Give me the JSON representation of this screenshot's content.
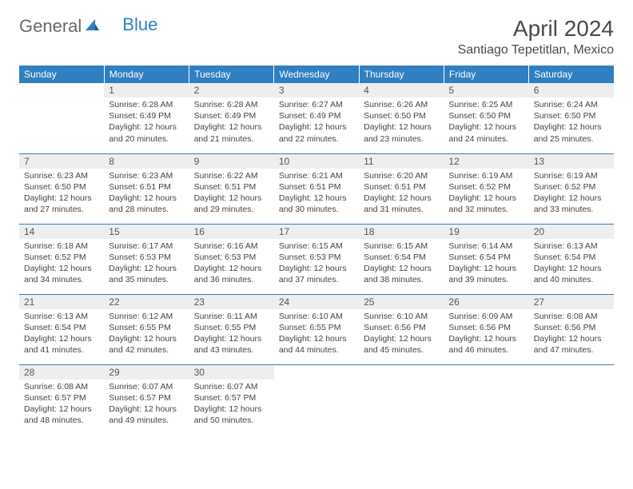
{
  "brand": {
    "part1": "General",
    "part2": "Blue"
  },
  "title": "April 2024",
  "location": "Santiago Tepetitlan, Mexico",
  "colors": {
    "header_bg": "#2f7fc1",
    "header_text": "#ffffff",
    "daynum_bg": "#eeeeee",
    "border": "#2f7fc1",
    "text": "#444444",
    "logo_gray": "#6a6a6a",
    "logo_blue": "#2f7fc1"
  },
  "weekdays": [
    "Sunday",
    "Monday",
    "Tuesday",
    "Wednesday",
    "Thursday",
    "Friday",
    "Saturday"
  ],
  "layout": {
    "columns": 7,
    "rows": 5,
    "first_weekday_index": 1,
    "days_in_month": 30
  },
  "days": {
    "1": {
      "sunrise": "6:28 AM",
      "sunset": "6:49 PM",
      "daylight": "12 hours and 20 minutes."
    },
    "2": {
      "sunrise": "6:28 AM",
      "sunset": "6:49 PM",
      "daylight": "12 hours and 21 minutes."
    },
    "3": {
      "sunrise": "6:27 AM",
      "sunset": "6:49 PM",
      "daylight": "12 hours and 22 minutes."
    },
    "4": {
      "sunrise": "6:26 AM",
      "sunset": "6:50 PM",
      "daylight": "12 hours and 23 minutes."
    },
    "5": {
      "sunrise": "6:25 AM",
      "sunset": "6:50 PM",
      "daylight": "12 hours and 24 minutes."
    },
    "6": {
      "sunrise": "6:24 AM",
      "sunset": "6:50 PM",
      "daylight": "12 hours and 25 minutes."
    },
    "7": {
      "sunrise": "6:23 AM",
      "sunset": "6:50 PM",
      "daylight": "12 hours and 27 minutes."
    },
    "8": {
      "sunrise": "6:23 AM",
      "sunset": "6:51 PM",
      "daylight": "12 hours and 28 minutes."
    },
    "9": {
      "sunrise": "6:22 AM",
      "sunset": "6:51 PM",
      "daylight": "12 hours and 29 minutes."
    },
    "10": {
      "sunrise": "6:21 AM",
      "sunset": "6:51 PM",
      "daylight": "12 hours and 30 minutes."
    },
    "11": {
      "sunrise": "6:20 AM",
      "sunset": "6:51 PM",
      "daylight": "12 hours and 31 minutes."
    },
    "12": {
      "sunrise": "6:19 AM",
      "sunset": "6:52 PM",
      "daylight": "12 hours and 32 minutes."
    },
    "13": {
      "sunrise": "6:19 AM",
      "sunset": "6:52 PM",
      "daylight": "12 hours and 33 minutes."
    },
    "14": {
      "sunrise": "6:18 AM",
      "sunset": "6:52 PM",
      "daylight": "12 hours and 34 minutes."
    },
    "15": {
      "sunrise": "6:17 AM",
      "sunset": "6:53 PM",
      "daylight": "12 hours and 35 minutes."
    },
    "16": {
      "sunrise": "6:16 AM",
      "sunset": "6:53 PM",
      "daylight": "12 hours and 36 minutes."
    },
    "17": {
      "sunrise": "6:15 AM",
      "sunset": "6:53 PM",
      "daylight": "12 hours and 37 minutes."
    },
    "18": {
      "sunrise": "6:15 AM",
      "sunset": "6:54 PM",
      "daylight": "12 hours and 38 minutes."
    },
    "19": {
      "sunrise": "6:14 AM",
      "sunset": "6:54 PM",
      "daylight": "12 hours and 39 minutes."
    },
    "20": {
      "sunrise": "6:13 AM",
      "sunset": "6:54 PM",
      "daylight": "12 hours and 40 minutes."
    },
    "21": {
      "sunrise": "6:13 AM",
      "sunset": "6:54 PM",
      "daylight": "12 hours and 41 minutes."
    },
    "22": {
      "sunrise": "6:12 AM",
      "sunset": "6:55 PM",
      "daylight": "12 hours and 42 minutes."
    },
    "23": {
      "sunrise": "6:11 AM",
      "sunset": "6:55 PM",
      "daylight": "12 hours and 43 minutes."
    },
    "24": {
      "sunrise": "6:10 AM",
      "sunset": "6:55 PM",
      "daylight": "12 hours and 44 minutes."
    },
    "25": {
      "sunrise": "6:10 AM",
      "sunset": "6:56 PM",
      "daylight": "12 hours and 45 minutes."
    },
    "26": {
      "sunrise": "6:09 AM",
      "sunset": "6:56 PM",
      "daylight": "12 hours and 46 minutes."
    },
    "27": {
      "sunrise": "6:08 AM",
      "sunset": "6:56 PM",
      "daylight": "12 hours and 47 minutes."
    },
    "28": {
      "sunrise": "6:08 AM",
      "sunset": "6:57 PM",
      "daylight": "12 hours and 48 minutes."
    },
    "29": {
      "sunrise": "6:07 AM",
      "sunset": "6:57 PM",
      "daylight": "12 hours and 49 minutes."
    },
    "30": {
      "sunrise": "6:07 AM",
      "sunset": "6:57 PM",
      "daylight": "12 hours and 50 minutes."
    }
  },
  "labels": {
    "sunrise": "Sunrise:",
    "sunset": "Sunset:",
    "daylight": "Daylight:"
  }
}
